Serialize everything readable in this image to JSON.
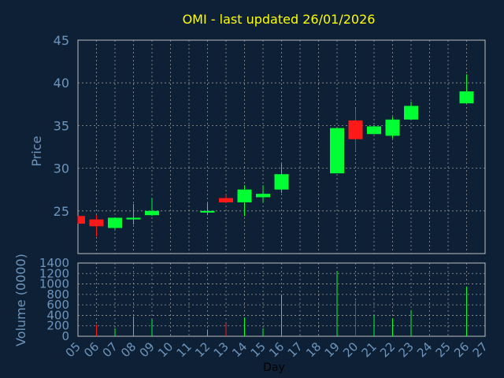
{
  "chart_data": [
    {
      "type": "candlestick",
      "title": "OMI - last updated 26/01/2026",
      "ylabel": "Price",
      "xlabel": "Day",
      "ylim": [
        20,
        45
      ],
      "yticks": [
        25,
        30,
        35,
        40,
        45
      ],
      "grid": true,
      "x_tick_labels": [
        "05",
        "06",
        "07",
        "08",
        "09",
        "10",
        "11",
        "12",
        "13",
        "14",
        "15",
        "16",
        "17",
        "18",
        "19",
        "20",
        "21",
        "22",
        "23",
        "24",
        "25",
        "26",
        "27"
      ],
      "candles": [
        {
          "day": "05",
          "open": 24.4,
          "high": 24.4,
          "low": 23.5,
          "close": 23.5
        },
        {
          "day": "06",
          "open": 24.0,
          "high": 24.5,
          "low": 22.0,
          "close": 23.2
        },
        {
          "day": "07",
          "open": 23.0,
          "high": 24.2,
          "low": 22.8,
          "close": 24.2
        },
        {
          "day": "08",
          "open": 24.0,
          "high": 25.8,
          "low": 23.4,
          "close": 24.2
        },
        {
          "day": "09",
          "open": 24.5,
          "high": 26.5,
          "low": 24.4,
          "close": 25.0
        },
        {
          "day": "12",
          "open": 24.8,
          "high": 25.9,
          "low": 24.5,
          "close": 25.0
        },
        {
          "day": "13",
          "open": 26.5,
          "high": 26.9,
          "low": 25.9,
          "close": 26.0
        },
        {
          "day": "14",
          "open": 26.0,
          "high": 28.0,
          "low": 24.4,
          "close": 27.5
        },
        {
          "day": "15",
          "open": 26.6,
          "high": 28.0,
          "low": 26.0,
          "close": 27.0
        },
        {
          "day": "16",
          "open": 27.5,
          "high": 30.5,
          "low": 27.1,
          "close": 29.3
        },
        {
          "day": "19",
          "open": 29.4,
          "high": 34.7,
          "low": 29.4,
          "close": 34.7
        },
        {
          "day": "20",
          "open": 35.6,
          "high": 37.0,
          "low": 32.0,
          "close": 33.4
        },
        {
          "day": "21",
          "open": 34.0,
          "high": 35.0,
          "low": 34.0,
          "close": 34.9
        },
        {
          "day": "22",
          "open": 33.8,
          "high": 36.0,
          "low": 33.5,
          "close": 35.7
        },
        {
          "day": "23",
          "open": 35.7,
          "high": 37.8,
          "low": 35.7,
          "close": 37.3
        },
        {
          "day": "26",
          "open": 37.6,
          "high": 41.0,
          "low": 37.6,
          "close": 39.0
        }
      ],
      "up_color": "#00ff33",
      "down_color": "#ff1a1a"
    },
    {
      "type": "bar",
      "ylabel": "Volume (0000)",
      "ylim": [
        0,
        1400
      ],
      "yticks": [
        0,
        200,
        400,
        600,
        800,
        1000,
        1200,
        1400
      ],
      "grid": true,
      "bars": [
        {
          "day": "06",
          "value": 220,
          "color": "#ff1a1a"
        },
        {
          "day": "07",
          "value": 150,
          "color": "#00ff33"
        },
        {
          "day": "08",
          "value": 380,
          "color": "#00ff33"
        },
        {
          "day": "09",
          "value": 320,
          "color": "#00ff33"
        },
        {
          "day": "12",
          "value": 130,
          "color": "#00ff33"
        },
        {
          "day": "13",
          "value": 250,
          "color": "#ff1a1a"
        },
        {
          "day": "14",
          "value": 360,
          "color": "#00ff33"
        },
        {
          "day": "15",
          "value": 150,
          "color": "#00ff33"
        },
        {
          "day": "16",
          "value": 800,
          "color": "#00ff33"
        },
        {
          "day": "19",
          "value": 1250,
          "color": "#00ff33"
        },
        {
          "day": "20",
          "value": 680,
          "color": "#ff1a1a"
        },
        {
          "day": "21",
          "value": 400,
          "color": "#00ff33"
        },
        {
          "day": "22",
          "value": 340,
          "color": "#00ff33"
        },
        {
          "day": "23",
          "value": 500,
          "color": "#00ff33"
        },
        {
          "day": "26",
          "value": 950,
          "color": "#00ff33"
        }
      ]
    }
  ],
  "colors": {
    "background": "#0d2035",
    "plot_background": "#0d2035",
    "frame": "#c0c0c0",
    "grid": "#9a9a9a",
    "axis_label": "#6f95bd",
    "title": "#ffff00",
    "xlabel": "#000000"
  }
}
